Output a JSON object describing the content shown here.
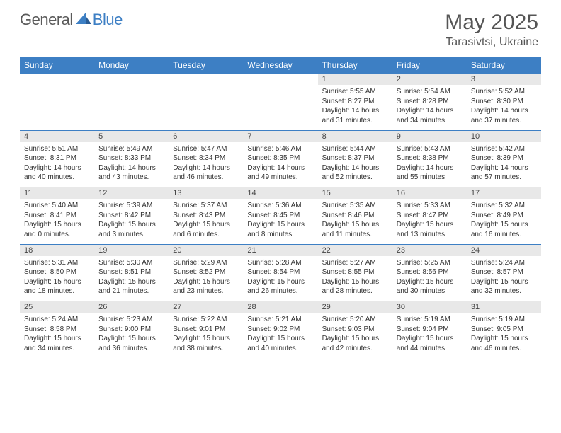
{
  "brand": {
    "part1": "General",
    "part2": "Blue"
  },
  "title": "May 2025",
  "location": "Tarasivtsi, Ukraine",
  "colors": {
    "header_bg": "#3d7fc4",
    "header_text": "#ffffff",
    "daynum_bg": "#e8e8e8",
    "border": "#3d7fc4",
    "body_text": "#333333",
    "title_text": "#555555"
  },
  "weekdays": [
    "Sunday",
    "Monday",
    "Tuesday",
    "Wednesday",
    "Thursday",
    "Friday",
    "Saturday"
  ],
  "first_weekday_index": 4,
  "days": [
    {
      "n": 1,
      "sr": "5:55 AM",
      "ss": "8:27 PM",
      "dl": "14 hours and 31 minutes."
    },
    {
      "n": 2,
      "sr": "5:54 AM",
      "ss": "8:28 PM",
      "dl": "14 hours and 34 minutes."
    },
    {
      "n": 3,
      "sr": "5:52 AM",
      "ss": "8:30 PM",
      "dl": "14 hours and 37 minutes."
    },
    {
      "n": 4,
      "sr": "5:51 AM",
      "ss": "8:31 PM",
      "dl": "14 hours and 40 minutes."
    },
    {
      "n": 5,
      "sr": "5:49 AM",
      "ss": "8:33 PM",
      "dl": "14 hours and 43 minutes."
    },
    {
      "n": 6,
      "sr": "5:47 AM",
      "ss": "8:34 PM",
      "dl": "14 hours and 46 minutes."
    },
    {
      "n": 7,
      "sr": "5:46 AM",
      "ss": "8:35 PM",
      "dl": "14 hours and 49 minutes."
    },
    {
      "n": 8,
      "sr": "5:44 AM",
      "ss": "8:37 PM",
      "dl": "14 hours and 52 minutes."
    },
    {
      "n": 9,
      "sr": "5:43 AM",
      "ss": "8:38 PM",
      "dl": "14 hours and 55 minutes."
    },
    {
      "n": 10,
      "sr": "5:42 AM",
      "ss": "8:39 PM",
      "dl": "14 hours and 57 minutes."
    },
    {
      "n": 11,
      "sr": "5:40 AM",
      "ss": "8:41 PM",
      "dl": "15 hours and 0 minutes."
    },
    {
      "n": 12,
      "sr": "5:39 AM",
      "ss": "8:42 PM",
      "dl": "15 hours and 3 minutes."
    },
    {
      "n": 13,
      "sr": "5:37 AM",
      "ss": "8:43 PM",
      "dl": "15 hours and 6 minutes."
    },
    {
      "n": 14,
      "sr": "5:36 AM",
      "ss": "8:45 PM",
      "dl": "15 hours and 8 minutes."
    },
    {
      "n": 15,
      "sr": "5:35 AM",
      "ss": "8:46 PM",
      "dl": "15 hours and 11 minutes."
    },
    {
      "n": 16,
      "sr": "5:33 AM",
      "ss": "8:47 PM",
      "dl": "15 hours and 13 minutes."
    },
    {
      "n": 17,
      "sr": "5:32 AM",
      "ss": "8:49 PM",
      "dl": "15 hours and 16 minutes."
    },
    {
      "n": 18,
      "sr": "5:31 AM",
      "ss": "8:50 PM",
      "dl": "15 hours and 18 minutes."
    },
    {
      "n": 19,
      "sr": "5:30 AM",
      "ss": "8:51 PM",
      "dl": "15 hours and 21 minutes."
    },
    {
      "n": 20,
      "sr": "5:29 AM",
      "ss": "8:52 PM",
      "dl": "15 hours and 23 minutes."
    },
    {
      "n": 21,
      "sr": "5:28 AM",
      "ss": "8:54 PM",
      "dl": "15 hours and 26 minutes."
    },
    {
      "n": 22,
      "sr": "5:27 AM",
      "ss": "8:55 PM",
      "dl": "15 hours and 28 minutes."
    },
    {
      "n": 23,
      "sr": "5:25 AM",
      "ss": "8:56 PM",
      "dl": "15 hours and 30 minutes."
    },
    {
      "n": 24,
      "sr": "5:24 AM",
      "ss": "8:57 PM",
      "dl": "15 hours and 32 minutes."
    },
    {
      "n": 25,
      "sr": "5:24 AM",
      "ss": "8:58 PM",
      "dl": "15 hours and 34 minutes."
    },
    {
      "n": 26,
      "sr": "5:23 AM",
      "ss": "9:00 PM",
      "dl": "15 hours and 36 minutes."
    },
    {
      "n": 27,
      "sr": "5:22 AM",
      "ss": "9:01 PM",
      "dl": "15 hours and 38 minutes."
    },
    {
      "n": 28,
      "sr": "5:21 AM",
      "ss": "9:02 PM",
      "dl": "15 hours and 40 minutes."
    },
    {
      "n": 29,
      "sr": "5:20 AM",
      "ss": "9:03 PM",
      "dl": "15 hours and 42 minutes."
    },
    {
      "n": 30,
      "sr": "5:19 AM",
      "ss": "9:04 PM",
      "dl": "15 hours and 44 minutes."
    },
    {
      "n": 31,
      "sr": "5:19 AM",
      "ss": "9:05 PM",
      "dl": "15 hours and 46 minutes."
    }
  ],
  "labels": {
    "sunrise": "Sunrise:",
    "sunset": "Sunset:",
    "daylight": "Daylight:"
  }
}
